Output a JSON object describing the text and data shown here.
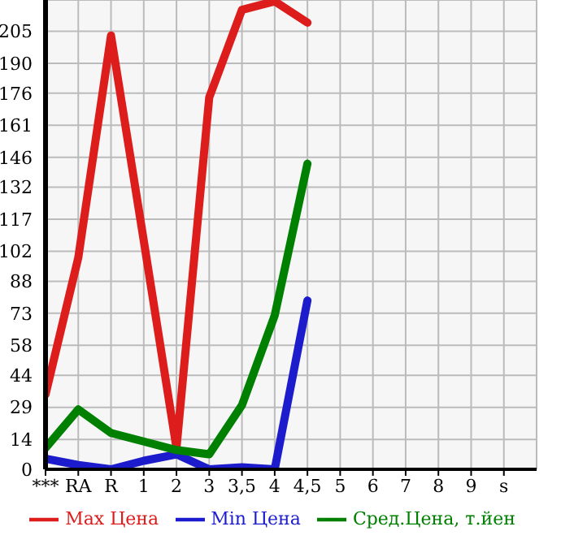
{
  "chart_data": {
    "type": "line",
    "categories": [
      "***",
      "RA",
      "R",
      "1",
      "2",
      "3",
      "3,5",
      "4",
      "4,5",
      "5",
      "6",
      "7",
      "8",
      "9",
      "s"
    ],
    "series": [
      {
        "name": "Max Цена",
        "color": "#dd1c1c",
        "values": [
          35,
          99,
          203,
          107,
          10,
          174,
          215,
          219,
          209,
          null,
          null,
          null,
          null,
          null,
          null
        ]
      },
      {
        "name": "Min Цена",
        "color": "#1c1ccc",
        "values": [
          5,
          2,
          0,
          4,
          7,
          0,
          1,
          0,
          79,
          null,
          null,
          null,
          null,
          null,
          null
        ]
      },
      {
        "name": "Сред.Цена, т.йен",
        "color": "#008000",
        "values": [
          10,
          28,
          17,
          13,
          9,
          7,
          30,
          72,
          143,
          null,
          null,
          null,
          null,
          null,
          null
        ]
      }
    ],
    "ylim": [
      0,
      219.6
    ],
    "yticks": [
      0,
      14,
      29,
      44,
      58,
      73,
      88,
      102,
      117,
      132,
      146,
      161,
      176,
      190,
      205
    ],
    "grid": true,
    "legend": "bottom",
    "marker": "none",
    "line_style": "solid"
  }
}
